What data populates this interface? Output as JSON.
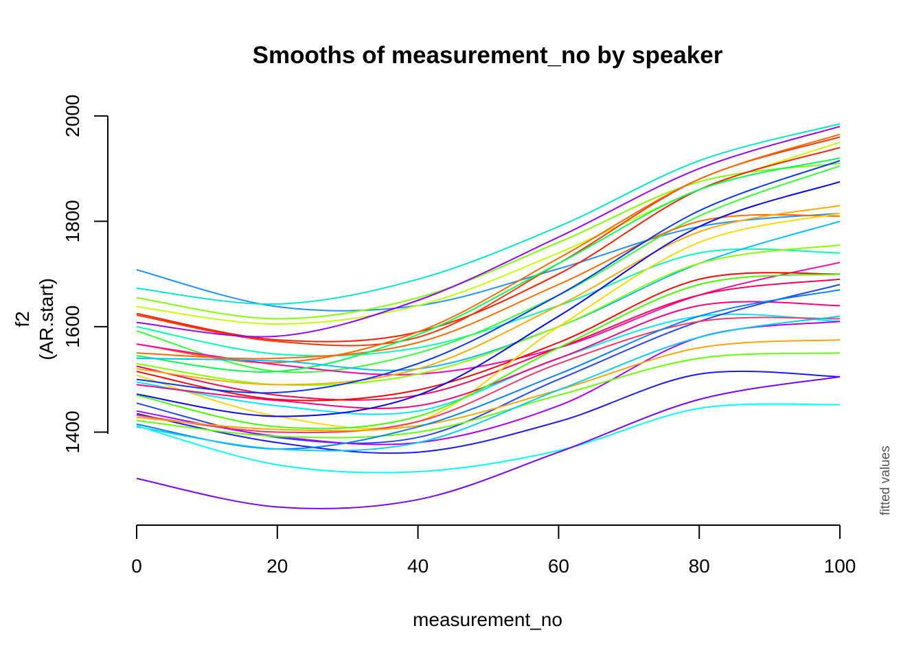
{
  "chart_data": {
    "type": "line",
    "title": "Smooths of measurement_no by speaker",
    "xlabel": "measurement_no",
    "ylabel_lines": [
      "f2",
      "(AR.start)"
    ],
    "side_note": "fitted values",
    "xlim": [
      0,
      100
    ],
    "ylim": [
      1230,
      2005
    ],
    "x_ticks": [
      0,
      20,
      40,
      60,
      80,
      100
    ],
    "y_ticks": [
      1400,
      1600,
      1800,
      2000
    ],
    "x": [
      0,
      20,
      40,
      60,
      80,
      100
    ],
    "series": [
      {
        "color": "#1e90ff",
        "values": [
          1708,
          1638,
          1640,
          1710,
          1790,
          1815
        ]
      },
      {
        "color": "#00e6c8",
        "values": [
          1673,
          1643,
          1690,
          1790,
          1915,
          1985
        ]
      },
      {
        "color": "#7fff00",
        "values": [
          1655,
          1615,
          1655,
          1760,
          1875,
          1910
        ]
      },
      {
        "color": "#c0ff00",
        "values": [
          1638,
          1605,
          1640,
          1740,
          1860,
          1950
        ]
      },
      {
        "color": "#ff1f00",
        "values": [
          1625,
          1575,
          1590,
          1700,
          1860,
          1940
        ]
      },
      {
        "color": "#ff3300",
        "values": [
          1622,
          1572,
          1580,
          1720,
          1880,
          1960
        ]
      },
      {
        "color": "#9400ff",
        "values": [
          1608,
          1582,
          1650,
          1770,
          1900,
          1980
        ]
      },
      {
        "color": "#00ffaa",
        "values": [
          1600,
          1548,
          1560,
          1640,
          1740,
          1740
        ]
      },
      {
        "color": "#33ff33",
        "values": [
          1592,
          1515,
          1550,
          1660,
          1810,
          1905
        ]
      },
      {
        "color": "#ff6600",
        "values": [
          1567,
          1532,
          1590,
          1730,
          1880,
          1965
        ]
      },
      {
        "color": "#ff00aa",
        "values": [
          1567,
          1528,
          1510,
          1560,
          1660,
          1722
        ]
      },
      {
        "color": "#ff6a00",
        "values": [
          1550,
          1540,
          1570,
          1680,
          1800,
          1810
        ]
      },
      {
        "color": "#00ff55",
        "values": [
          1545,
          1515,
          1585,
          1720,
          1860,
          1920
        ]
      },
      {
        "color": "#00bfff",
        "values": [
          1540,
          1535,
          1520,
          1600,
          1720,
          1800
        ]
      },
      {
        "color": "#88ff00",
        "values": [
          1530,
          1490,
          1510,
          1600,
          1720,
          1755
        ]
      },
      {
        "color": "#ff0055",
        "values": [
          1525,
          1470,
          1470,
          1560,
          1660,
          1690
        ]
      },
      {
        "color": "#ffaa00",
        "values": [
          1520,
          1490,
          1520,
          1640,
          1780,
          1830
        ]
      },
      {
        "color": "#ff0000",
        "values": [
          1515,
          1462,
          1480,
          1570,
          1690,
          1700
        ]
      },
      {
        "color": "#ffd700",
        "values": [
          1508,
          1430,
          1420,
          1600,
          1760,
          1815
        ]
      },
      {
        "color": "#0033ff",
        "values": [
          1500,
          1475,
          1530,
          1660,
          1820,
          1915
        ]
      },
      {
        "color": "#00e5ff",
        "values": [
          1495,
          1450,
          1440,
          1540,
          1620,
          1610
        ]
      },
      {
        "color": "#ff0080",
        "values": [
          1490,
          1460,
          1450,
          1540,
          1640,
          1640
        ]
      },
      {
        "color": "#0000ff",
        "values": [
          1472,
          1430,
          1470,
          1620,
          1790,
          1875
        ]
      },
      {
        "color": "#44ff00",
        "values": [
          1470,
          1410,
          1430,
          1560,
          1680,
          1700
        ]
      },
      {
        "color": "#2244ff",
        "values": [
          1455,
          1390,
          1390,
          1500,
          1610,
          1680
        ]
      },
      {
        "color": "#aa00ff",
        "values": [
          1440,
          1392,
          1380,
          1450,
          1580,
          1610
        ]
      },
      {
        "color": "#1a1aff",
        "values": [
          1435,
          1380,
          1362,
          1420,
          1510,
          1505
        ]
      },
      {
        "color": "#ff3366",
        "values": [
          1432,
          1400,
          1420,
          1530,
          1610,
          1615
        ]
      },
      {
        "color": "#ffa500",
        "values": [
          1428,
          1405,
          1412,
          1480,
          1560,
          1575
        ]
      },
      {
        "color": "#66ff00",
        "values": [
          1422,
          1392,
          1400,
          1470,
          1540,
          1550
        ]
      },
      {
        "color": "#0080ff",
        "values": [
          1415,
          1368,
          1410,
          1510,
          1620,
          1670
        ]
      },
      {
        "color": "#00ccff",
        "values": [
          1410,
          1368,
          1380,
          1480,
          1580,
          1620
        ]
      },
      {
        "color": "#00ffff",
        "values": [
          1412,
          1338,
          1325,
          1365,
          1445,
          1452
        ]
      },
      {
        "color": "#7700ff",
        "values": [
          1312,
          1258,
          1272,
          1362,
          1462,
          1505
        ]
      }
    ]
  }
}
